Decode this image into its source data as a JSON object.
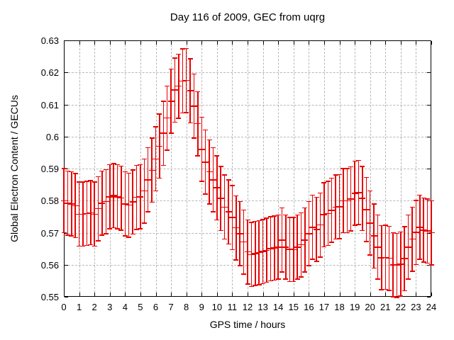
{
  "title": "Day 116 of 2009, GEC from uqrg",
  "chart_data": {
    "type": "scatter",
    "style": "points-with-y-errorbars",
    "title": "Day 116 of 2009, GEC from uqrg",
    "xlabel": "GPS time / hours",
    "ylabel": "Global Electron Content / GECUs",
    "xlim": [
      0,
      24
    ],
    "ylim": [
      0.55,
      0.63
    ],
    "grid": true,
    "legend": "none",
    "series_color": "#e60000",
    "xticks": [
      0,
      1,
      2,
      3,
      4,
      5,
      6,
      7,
      8,
      9,
      10,
      11,
      12,
      13,
      14,
      15,
      16,
      17,
      18,
      19,
      20,
      21,
      22,
      23,
      24
    ],
    "xtick_labels": [
      "0",
      "1",
      "2",
      "3",
      "4",
      "5",
      "6",
      "7",
      "8",
      "9",
      "10",
      "11",
      "12",
      "13",
      "14",
      "15",
      "16",
      "17",
      "18",
      "19",
      "20",
      "21",
      "22",
      "23",
      "24"
    ],
    "yticks": [
      0.55,
      0.56,
      0.57,
      0.58,
      0.59,
      0.6,
      0.61,
      0.62,
      0.63
    ],
    "ytick_labels": [
      "0.55",
      "0.56",
      "0.57",
      "0.58",
      "0.59",
      "0.6",
      "0.61",
      "0.62",
      "0.63"
    ],
    "yerr": 0.01,
    "x": [
      0,
      0.25,
      0.5,
      0.75,
      1,
      1.25,
      1.5,
      1.75,
      2,
      2.25,
      2.5,
      2.75,
      3,
      3.25,
      3.5,
      3.75,
      4,
      4.25,
      4.5,
      4.75,
      5,
      5.25,
      5.5,
      5.75,
      6,
      6.25,
      6.5,
      6.75,
      7,
      7.25,
      7.5,
      7.75,
      8,
      8.25,
      8.5,
      8.75,
      9,
      9.25,
      9.5,
      9.75,
      10,
      10.25,
      10.5,
      10.75,
      11,
      11.25,
      11.5,
      11.75,
      12,
      12.25,
      12.5,
      12.75,
      13,
      13.25,
      13.5,
      13.75,
      14,
      14.25,
      14.5,
      14.75,
      15,
      15.25,
      15.5,
      15.75,
      16,
      16.25,
      16.5,
      16.75,
      17,
      17.25,
      17.5,
      17.75,
      18,
      18.25,
      18.5,
      18.75,
      19,
      19.25,
      19.5,
      19.75,
      20,
      20.25,
      20.5,
      20.75,
      21,
      21.25,
      21.5,
      21.75,
      22,
      22.25,
      22.5,
      22.75,
      23,
      23.25,
      23.5,
      23.75,
      24
    ],
    "y": [
      0.58,
      0.5792,
      0.579,
      0.5784,
      0.5758,
      0.5758,
      0.576,
      0.5762,
      0.5758,
      0.5775,
      0.5792,
      0.5797,
      0.5812,
      0.5816,
      0.5812,
      0.5808,
      0.579,
      0.5786,
      0.5796,
      0.581,
      0.5812,
      0.583,
      0.5865,
      0.5895,
      0.593,
      0.597,
      0.601,
      0.6058,
      0.611,
      0.6145,
      0.6157,
      0.6173,
      0.6175,
      0.6143,
      0.6095,
      0.604,
      0.596,
      0.592,
      0.589,
      0.5865,
      0.584,
      0.5807,
      0.578,
      0.5765,
      0.5747,
      0.5715,
      0.5697,
      0.5671,
      0.564,
      0.5632,
      0.5635,
      0.5638,
      0.5641,
      0.5645,
      0.565,
      0.5652,
      0.5655,
      0.5677,
      0.5655,
      0.5648,
      0.5647,
      0.5655,
      0.5662,
      0.5677,
      0.5697,
      0.5717,
      0.571,
      0.5724,
      0.5756,
      0.576,
      0.577,
      0.578,
      0.5781,
      0.58,
      0.58,
      0.5805,
      0.5823,
      0.5825,
      0.5807,
      0.5772,
      0.573,
      0.569,
      0.5655,
      0.5622,
      0.5623,
      0.562,
      0.56,
      0.5598,
      0.5602,
      0.5619,
      0.5655,
      0.568,
      0.5701,
      0.5717,
      0.5708,
      0.5705,
      0.57
    ]
  }
}
